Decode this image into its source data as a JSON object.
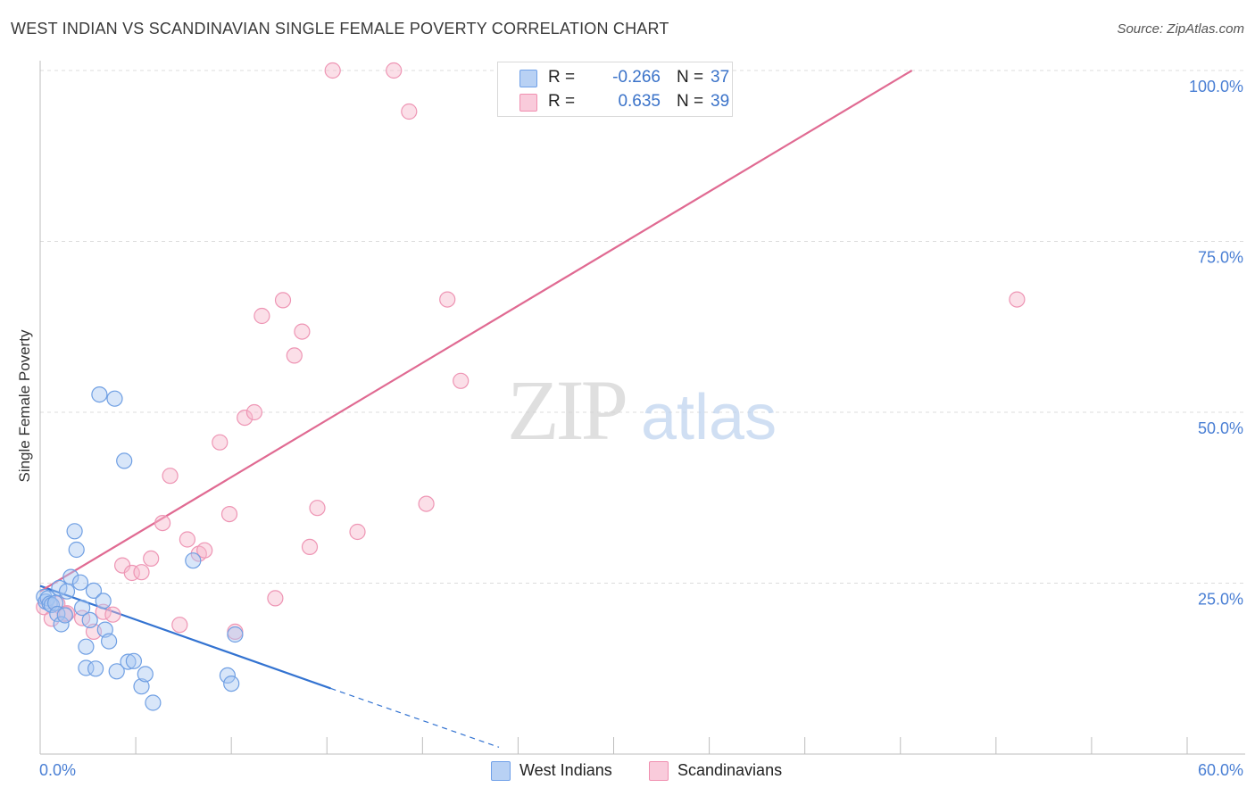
{
  "title": "WEST INDIAN VS SCANDINAVIAN SINGLE FEMALE POVERTY CORRELATION CHART",
  "source": "Source: ZipAtlas.com",
  "watermark": {
    "zip": "ZIP",
    "atlas": "atlas"
  },
  "legend": {
    "r_label": "R =",
    "n_label": "N =",
    "rows": [
      {
        "name": "West Indians",
        "r": "-0.266",
        "n": "37",
        "color": "#6fa0e8"
      },
      {
        "name": "Scandinavians",
        "r": "0.635",
        "n": "39",
        "color": "#f08fb0"
      }
    ]
  },
  "colors": {
    "blue_fill": "#a9c7f1",
    "blue_line": "#3373d1",
    "pink_fill": "#f6b9cd",
    "pink_line": "#e06a92",
    "tick_text": "#4a7fd4"
  },
  "chart_data": {
    "type": "scatter",
    "xlabel": "",
    "ylabel": "Single Female Poverty",
    "xlim": [
      0,
      60
    ],
    "ylim": [
      0,
      100
    ],
    "x_tick_labels": [
      "0.0%",
      "60.0%"
    ],
    "y_ticks": [
      25,
      50,
      75,
      100
    ],
    "y_tick_labels": [
      "25.0%",
      "50.0%",
      "75.0%",
      "100.0%"
    ],
    "grid": true,
    "series": [
      {
        "name": "West Indians",
        "points": [
          [
            0.2,
            23.0
          ],
          [
            0.3,
            22.3
          ],
          [
            0.4,
            22.8
          ],
          [
            0.5,
            22.0
          ],
          [
            0.6,
            21.8
          ],
          [
            0.8,
            22.1
          ],
          [
            0.9,
            20.5
          ],
          [
            1.0,
            24.3
          ],
          [
            1.1,
            19.0
          ],
          [
            1.3,
            20.3
          ],
          [
            1.4,
            23.8
          ],
          [
            1.6,
            25.9
          ],
          [
            1.8,
            32.6
          ],
          [
            1.9,
            29.9
          ],
          [
            2.1,
            25.1
          ],
          [
            2.2,
            21.4
          ],
          [
            2.4,
            12.6
          ],
          [
            2.4,
            15.7
          ],
          [
            2.6,
            19.6
          ],
          [
            2.8,
            23.9
          ],
          [
            2.9,
            12.5
          ],
          [
            3.1,
            52.6
          ],
          [
            3.3,
            22.4
          ],
          [
            3.4,
            18.2
          ],
          [
            3.6,
            16.5
          ],
          [
            3.9,
            52.0
          ],
          [
            4.0,
            12.1
          ],
          [
            4.4,
            42.9
          ],
          [
            4.6,
            13.5
          ],
          [
            4.9,
            13.6
          ],
          [
            5.3,
            9.9
          ],
          [
            5.5,
            11.7
          ],
          [
            5.9,
            7.5
          ],
          [
            8.0,
            28.3
          ],
          [
            9.8,
            11.5
          ],
          [
            10.0,
            10.3
          ],
          [
            10.2,
            17.5
          ]
        ],
        "trend": {
          "x0": 0,
          "y0": 24.6,
          "x1": 15.2,
          "y1": 9.6,
          "dash_to_x": 24.0,
          "dash_to_y": 1.0
        }
      },
      {
        "name": "Scandinavians",
        "points": [
          [
            0.2,
            21.5
          ],
          [
            0.6,
            19.8
          ],
          [
            0.9,
            22.0
          ],
          [
            1.3,
            20.5
          ],
          [
            1.4,
            20.6
          ],
          [
            2.2,
            19.9
          ],
          [
            2.8,
            17.9
          ],
          [
            3.3,
            20.8
          ],
          [
            3.8,
            20.4
          ],
          [
            4.3,
            27.6
          ],
          [
            4.8,
            26.5
          ],
          [
            5.3,
            26.6
          ],
          [
            5.8,
            28.6
          ],
          [
            6.4,
            33.8
          ],
          [
            6.8,
            40.7
          ],
          [
            7.3,
            18.9
          ],
          [
            7.7,
            31.4
          ],
          [
            8.3,
            29.3
          ],
          [
            8.6,
            29.8
          ],
          [
            9.4,
            45.6
          ],
          [
            9.9,
            35.1
          ],
          [
            10.2,
            17.9
          ],
          [
            10.7,
            49.2
          ],
          [
            11.2,
            50.0
          ],
          [
            11.6,
            64.1
          ],
          [
            12.3,
            22.8
          ],
          [
            12.7,
            66.4
          ],
          [
            13.3,
            58.3
          ],
          [
            13.7,
            61.8
          ],
          [
            14.1,
            30.3
          ],
          [
            14.5,
            36.0
          ],
          [
            15.3,
            100.0
          ],
          [
            16.6,
            32.5
          ],
          [
            18.5,
            100.0
          ],
          [
            19.3,
            94.0
          ],
          [
            20.2,
            36.6
          ],
          [
            21.3,
            66.5
          ],
          [
            22.0,
            54.6
          ],
          [
            51.1,
            66.5
          ]
        ],
        "trend": {
          "x0": 0,
          "y0": 23.8,
          "x1": 45.6,
          "y1": 100.0
        }
      }
    ]
  }
}
